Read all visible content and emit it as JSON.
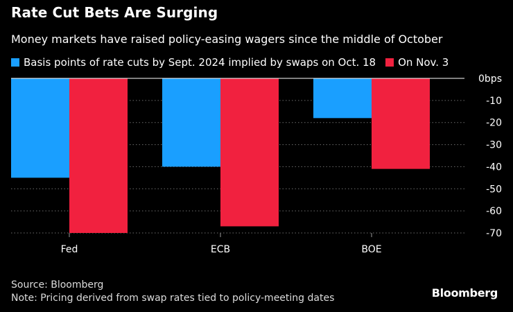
{
  "header": {
    "title": "Rate Cut Bets Are Surging",
    "subtitle": "Money markets have raised policy-easing wagers since the middle of October"
  },
  "legend": [
    {
      "label": "Basis points of rate cuts by Sept. 2024 implied by swaps on Oct. 18",
      "color": "#1a9fff"
    },
    {
      "label": "On Nov. 3",
      "color": "#f1213f"
    }
  ],
  "chart_data": {
    "type": "bar",
    "categories": [
      "Fed",
      "ECB",
      "BOE"
    ],
    "series": [
      {
        "name": "Basis points of rate cuts by Sept. 2024 implied by swaps on Oct. 18",
        "values": [
          -45,
          -40,
          -18
        ],
        "color": "#1a9fff"
      },
      {
        "name": "On Nov. 3",
        "values": [
          -70,
          -67,
          -41
        ],
        "color": "#f1213f"
      }
    ],
    "ylim": [
      -70,
      0
    ],
    "yticks": [
      0,
      -10,
      -20,
      -30,
      -40,
      -50,
      -60,
      -70
    ],
    "ytick_labels": [
      "0bps",
      "-10",
      "-20",
      "-30",
      "-40",
      "-50",
      "-60",
      "-70"
    ],
    "grid": true,
    "ylabel": "",
    "xlabel": ""
  },
  "footer": {
    "source": "Source: Bloomberg",
    "note": "Note: Pricing derived from swap rates tied to policy-meeting dates"
  },
  "brand": "Bloomberg"
}
